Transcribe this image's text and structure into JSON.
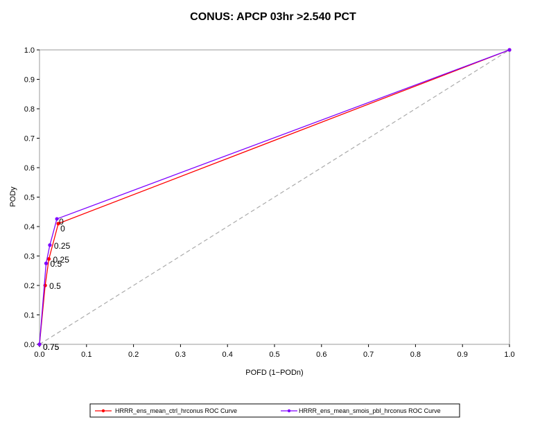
{
  "chart_data": {
    "type": "line",
    "title": "CONUS: APCP 03hr >2.540 PCT",
    "xlabel": "POFD (1−PODn)",
    "ylabel": "PODy",
    "xlim": [
      0,
      1
    ],
    "ylim": [
      0,
      1
    ],
    "xticks": [
      "0.0",
      "0.1",
      "0.2",
      "0.3",
      "0.4",
      "0.5",
      "0.6",
      "0.7",
      "0.8",
      "0.9",
      "1.0"
    ],
    "yticks": [
      "0.0",
      "0.1",
      "0.2",
      "0.3",
      "0.4",
      "0.5",
      "0.6",
      "0.7",
      "0.8",
      "0.9",
      "1.0"
    ],
    "grid": false,
    "legend_position": "bottom",
    "reference_line": {
      "x": [
        0,
        1
      ],
      "y": [
        0,
        1
      ],
      "color": "#aaaaaa",
      "style": "dashed"
    },
    "series": [
      {
        "name": "HRRR_ens_mean_ctrl_hrconus ROC Curve",
        "color": "#ff0000",
        "x": [
          0.0,
          0.012,
          0.02,
          0.04,
          1.0
        ],
        "y": [
          0.0,
          0.2,
          0.29,
          0.41,
          1.0
        ],
        "labels": [
          "0.75",
          "0.5",
          "0.25",
          "0",
          ""
        ]
      },
      {
        "name": "HRRR_ens_mean_smois_pbl_hrconus ROC Curve",
        "color": "#7f00ff",
        "x": [
          0.0,
          0.014,
          0.022,
          0.037,
          1.0
        ],
        "y": [
          0.0,
          0.275,
          0.337,
          0.426,
          1.0
        ],
        "labels": [
          "0.75",
          "0.5",
          "0.25",
          "0",
          ""
        ]
      }
    ]
  }
}
